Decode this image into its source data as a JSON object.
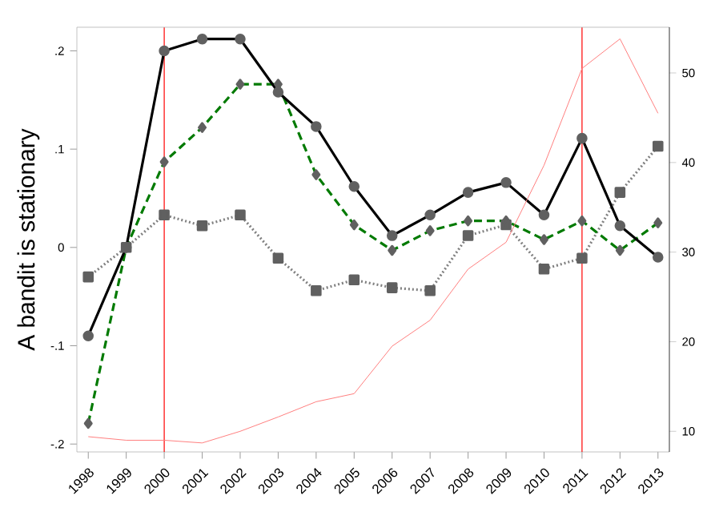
{
  "chart_data": {
    "type": "line",
    "ylabel": "A bandit is stationary",
    "x": [
      1998,
      1999,
      2000,
      2001,
      2002,
      2003,
      2004,
      2005,
      2006,
      2007,
      2008,
      2009,
      2010,
      2011,
      2012,
      2013
    ],
    "xlim": [
      1997.7,
      2013.3
    ],
    "xticks": [
      1998,
      1999,
      2000,
      2001,
      2002,
      2003,
      2004,
      2005,
      2006,
      2007,
      2008,
      2009,
      2010,
      2011,
      2012,
      2013
    ],
    "ylim": [
      -0.208,
      0.224
    ],
    "yticks": [
      {
        "value": -0.2,
        "label": "-.2"
      },
      {
        "value": -0.1,
        "label": "-.1"
      },
      {
        "value": 0,
        "label": "0"
      },
      {
        "value": 0.1,
        "label": ".1"
      },
      {
        "value": 0.2,
        "label": ".2"
      }
    ],
    "y2lim": [
      7.7,
      55.1
    ],
    "y2ticks": [
      10,
      20,
      30,
      40,
      50
    ],
    "grid": false,
    "series": [
      {
        "color": "#ff7f7f",
        "axis": "y2",
        "marker": "none",
        "line_style": "solid",
        "values": [
          9.4,
          9.0,
          9.0,
          8.7,
          10,
          11.6,
          13.3,
          14.2,
          19.5,
          22.4,
          28.1,
          31.1,
          39.7,
          50.5,
          53.8,
          45.5
        ]
      },
      {
        "color": "#808080",
        "marker": "square",
        "line_style": "dotted",
        "values": [
          -0.03,
          0.0,
          0.033,
          0.022,
          0.033,
          -0.011,
          -0.044,
          -0.033,
          -0.041,
          -0.044,
          0.012,
          0.023,
          -0.022,
          -0.011,
          0.056,
          0.103
        ]
      },
      {
        "color": "#007a00",
        "marker": "diamond",
        "line_style": "dashed",
        "values": [
          -0.179,
          0.0,
          0.087,
          0.122,
          0.166,
          0.166,
          0.074,
          0.023,
          -0.003,
          0.017,
          0.027,
          0.027,
          0.008,
          0.027,
          -0.003,
          0.025
        ]
      },
      {
        "color": "#000000",
        "marker": "circle",
        "line_style": "solid",
        "values": [
          -0.09,
          0.0,
          0.2,
          0.212,
          0.212,
          0.158,
          0.123,
          0.062,
          0.012,
          0.033,
          0.056,
          0.066,
          0.033,
          0.111,
          0.022,
          -0.01
        ]
      }
    ],
    "ref_lines": [
      {
        "axis": "x",
        "value": 2000,
        "color": "#ff0000"
      },
      {
        "axis": "x",
        "value": 2011,
        "color": "#ff0000"
      }
    ]
  }
}
